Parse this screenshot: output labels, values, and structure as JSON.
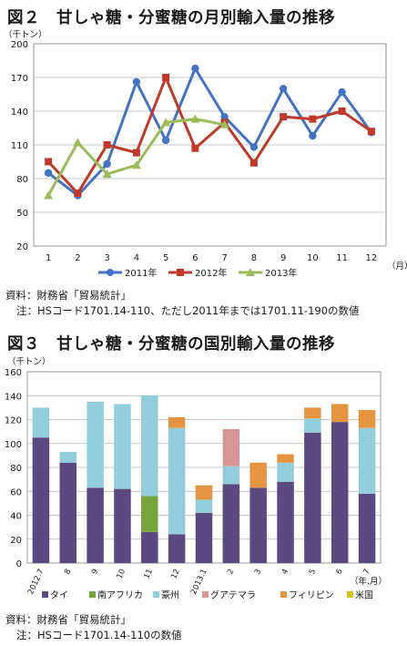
{
  "chart_data": [
    {
      "type": "line",
      "title": "図２　甘しゃ糖・分蜜糖の月別輸入量の推移",
      "ylabel": "（千トン）",
      "xlabel": "（月）",
      "ylim": [
        20,
        200
      ],
      "yticks": [
        20,
        50,
        80,
        110,
        140,
        170,
        200
      ],
      "categories": [
        "1",
        "2",
        "3",
        "4",
        "5",
        "6",
        "7",
        "8",
        "9",
        "10",
        "11",
        "12"
      ],
      "grid": true,
      "legend": "bottom",
      "series": [
        {
          "name": "2011年",
          "color": "#4472c4",
          "marker": "circle",
          "values": [
            85,
            65,
            93,
            166,
            114,
            178,
            135,
            108,
            160,
            118,
            157,
            121
          ]
        },
        {
          "name": "2012年",
          "color": "#c0392b",
          "marker": "square",
          "values": [
            95,
            67,
            110,
            103,
            170,
            107,
            130,
            94,
            135,
            133,
            140,
            122
          ]
        },
        {
          "name": "2013年",
          "color": "#9bbb59",
          "marker": "triangle",
          "values": [
            65,
            112,
            84,
            92,
            130,
            133,
            128,
            null,
            null,
            null,
            null,
            null
          ]
        }
      ]
    },
    {
      "type": "bar",
      "stacked": true,
      "title": "図３　甘しゃ糖・分蜜糖の国別輸入量の推移",
      "ylabel": "（千トン）",
      "xlabel": "（年.月）",
      "ylim": [
        0,
        160
      ],
      "yticks": [
        0,
        20,
        40,
        60,
        80,
        100,
        120,
        140,
        160
      ],
      "categories": [
        "2012.7",
        "8",
        "9",
        "10",
        "11",
        "12",
        "2013.1",
        "2",
        "3",
        "4",
        "5",
        "6",
        "7"
      ],
      "grid": true,
      "legend": "bottom",
      "series": [
        {
          "name": "タイ",
          "color": "#5b4a82",
          "values": [
            105,
            84,
            63,
            62,
            26,
            24,
            42,
            66,
            63,
            68,
            109,
            118,
            58
          ]
        },
        {
          "name": "南アフリカ",
          "color": "#77a43b",
          "values": [
            0,
            0,
            0,
            0,
            30,
            0,
            0,
            0,
            0,
            0,
            0,
            0,
            0
          ]
        },
        {
          "name": "豪州",
          "color": "#92cddc",
          "values": [
            25,
            9,
            72,
            71,
            84,
            89,
            11,
            15,
            0,
            16,
            12,
            0,
            55
          ]
        },
        {
          "name": "グアテマラ",
          "color": "#d99594",
          "values": [
            0,
            0,
            0,
            0,
            0,
            0,
            0,
            31,
            0,
            0,
            0,
            0,
            0
          ]
        },
        {
          "name": "フィリピン",
          "color": "#e59440",
          "values": [
            0,
            0,
            0,
            0,
            0,
            9,
            12,
            0,
            21,
            7,
            9,
            15,
            15
          ]
        },
        {
          "name": "米国",
          "color": "#d4c214",
          "values": [
            0,
            0,
            0,
            0,
            0,
            0,
            0,
            0,
            0,
            0,
            0,
            0,
            0
          ]
        }
      ]
    }
  ],
  "notes": {
    "fig2_source": "資料：財務省「貿易統計」",
    "fig2_note": "注：HSコード1701.14-110、ただし2011年までは1701.11-190の数値",
    "fig3_source": "資料：財務省「貿易統計」",
    "fig3_note": "注：HSコード1701.14-110の数値"
  }
}
